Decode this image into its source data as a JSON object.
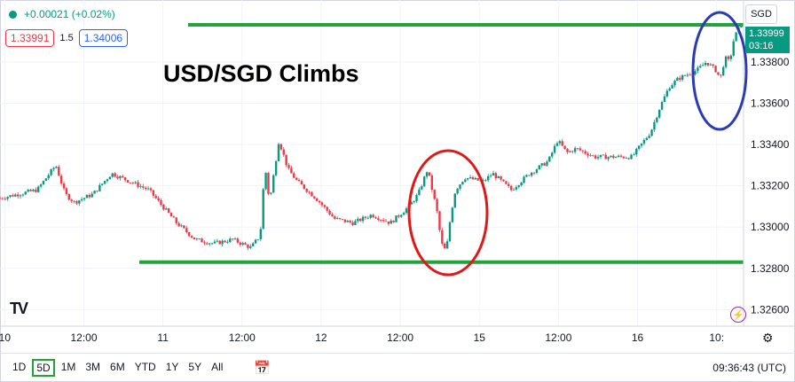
{
  "header": {
    "change_text": "+0.00021 (+0.02%)",
    "bid": "1.33991",
    "spread": "1.5",
    "ask": "1.34006",
    "currency": "SGD"
  },
  "title": "USD/SGD Climbs",
  "last_price": {
    "value": "1.33999",
    "countdown": "03:16"
  },
  "toolbar": {
    "timeframes": [
      "1D",
      "5D",
      "1M",
      "3M",
      "6M",
      "YTD",
      "1Y",
      "5Y",
      "All"
    ],
    "active": "5D",
    "clock": "09:36:43 (UTC)"
  },
  "colors": {
    "up": "#089981",
    "down": "#f23645",
    "support_resistance": "#22a33b",
    "highlight_red": "#e01818",
    "highlight_blue": "#2b3ab5"
  },
  "chart_data": {
    "type": "line",
    "style": "candlestick",
    "x_tick_labels": [
      "10",
      "12:00",
      "11",
      "12:00",
      "12",
      "12:00",
      "15",
      "12:00",
      "16",
      "10:"
    ],
    "y_tick_labels": [
      "1.33800",
      "1.33600",
      "1.33400",
      "1.33200",
      "1.33000",
      "1.32800",
      "1.32600"
    ],
    "y_range": [
      1.3252,
      1.341
    ],
    "x_range": [
      0,
      160
    ],
    "series": [
      {
        "x": [
          0,
          4,
          8,
          12,
          14,
          16,
          20,
          24,
          28,
          32,
          35,
          38,
          42,
          46,
          50,
          54,
          56,
          57,
          58,
          60,
          62,
          64,
          66,
          68,
          72,
          76,
          80,
          84,
          88,
          90,
          92,
          93,
          94,
          95,
          96,
          97,
          98,
          100,
          104,
          106,
          110,
          114,
          118,
          120,
          122,
          124,
          126,
          128,
          132,
          136,
          140,
          142,
          144,
          146,
          150,
          152,
          154,
          155,
          156,
          157,
          158,
          160
        ],
        "y": [
          1.3314,
          1.3316,
          1.3318,
          1.333,
          1.3316,
          1.3312,
          1.3316,
          1.3326,
          1.3322,
          1.3318,
          1.331,
          1.3302,
          1.3294,
          1.3292,
          1.3294,
          1.329,
          1.3296,
          1.333,
          1.3312,
          1.3342,
          1.3328,
          1.3322,
          1.3318,
          1.3314,
          1.3304,
          1.3302,
          1.3306,
          1.3302,
          1.331,
          1.3316,
          1.3328,
          1.3318,
          1.3308,
          1.3292,
          1.3288,
          1.3306,
          1.3318,
          1.3324,
          1.3322,
          1.3326,
          1.3318,
          1.3326,
          1.3332,
          1.3342,
          1.3336,
          1.3338,
          1.3336,
          1.3334,
          1.3334,
          1.3334,
          1.3346,
          1.3358,
          1.3368,
          1.3372,
          1.3376,
          1.338,
          1.3376,
          1.3372,
          1.3382,
          1.338,
          1.3392,
          1.34
        ]
      }
    ],
    "horizontal_lines": [
      {
        "label": "resistance",
        "y": 1.3398
      },
      {
        "label": "support",
        "y": 1.3283
      }
    ],
    "grid": true,
    "legend": "none"
  }
}
